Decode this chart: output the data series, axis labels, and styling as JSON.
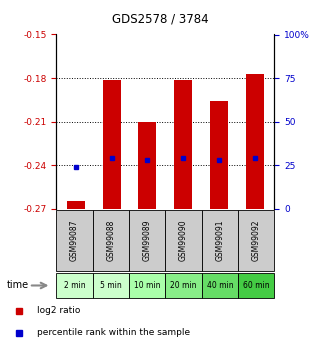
{
  "title": "GDS2578 / 3784",
  "samples": [
    "GSM99087",
    "GSM99088",
    "GSM99089",
    "GSM99090",
    "GSM99091",
    "GSM99092"
  ],
  "time_labels": [
    "2 min",
    "5 min",
    "10 min",
    "20 min",
    "40 min",
    "60 min"
  ],
  "time_colors": [
    "#ccffcc",
    "#ccffcc",
    "#aaffaa",
    "#88ee88",
    "#66dd66",
    "#44cc44"
  ],
  "log2_ratio": [
    -0.265,
    -0.181,
    -0.21,
    -0.181,
    -0.196,
    -0.177
  ],
  "percentile_rank": [
    24,
    29,
    28,
    29,
    28,
    29
  ],
  "ylim_left": [
    -0.27,
    -0.15
  ],
  "yticks_left": [
    -0.27,
    -0.24,
    -0.21,
    -0.18,
    -0.15
  ],
  "ylim_right": [
    0,
    100
  ],
  "yticks_right": [
    0,
    25,
    50,
    75,
    100
  ],
  "bar_color": "#cc0000",
  "dot_color": "#0000cc",
  "bar_width": 0.5,
  "bg_color_plot": "#ffffff",
  "bg_color_gsm": "#cccccc",
  "left_label_color": "#cc0000",
  "right_label_color": "#0000cc",
  "legend_log2": "log2 ratio",
  "legend_pct": "percentile rank within the sample",
  "baseline": -0.27,
  "grid_lines": [
    -0.18,
    -0.21,
    -0.24
  ]
}
